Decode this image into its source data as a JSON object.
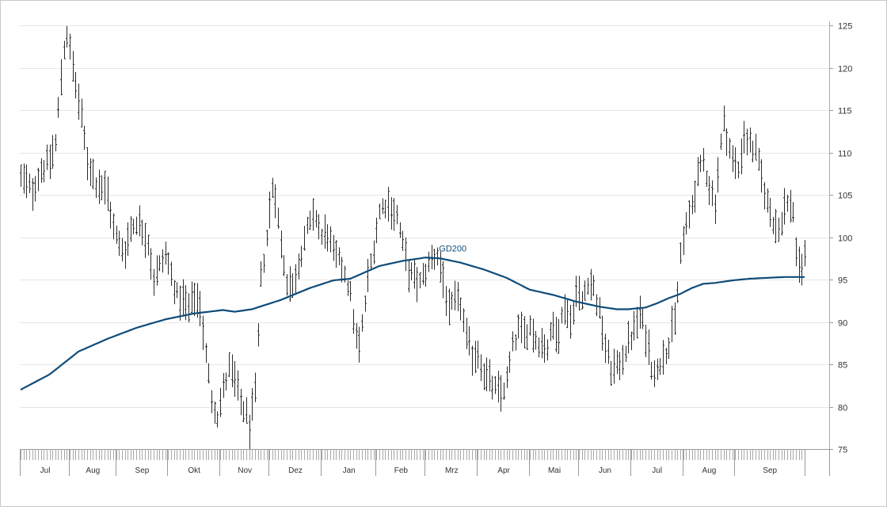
{
  "chart_data": {
    "type": "ohlc",
    "title": "",
    "xlabel": "",
    "ylabel": "",
    "ylim": [
      75,
      125
    ],
    "yticks": [
      75,
      80,
      85,
      90,
      95,
      100,
      105,
      110,
      115,
      120,
      125
    ],
    "grid": true,
    "y_axis_position": "right",
    "months": [
      "Jul",
      "Aug",
      "Sep",
      "Okt",
      "Nov",
      "Dez",
      "Jan",
      "Feb",
      "Mrz",
      "Apr",
      "Mai",
      "Jun",
      "Jul",
      "Aug",
      "Sep"
    ],
    "bar_color": "#2b2b2b",
    "ma_color": "#0f4c7a",
    "grid_color": "#e6e6e6",
    "price_anchors": [
      [
        0,
        107
      ],
      [
        4,
        105.5
      ],
      [
        7,
        108
      ],
      [
        10,
        109
      ],
      [
        12,
        111
      ],
      [
        14,
        119
      ],
      [
        15,
        122.5
      ],
      [
        16,
        124
      ],
      [
        17,
        122
      ],
      [
        19,
        118
      ],
      [
        21,
        114
      ],
      [
        23,
        109
      ],
      [
        26,
        106.5
      ],
      [
        28,
        106
      ],
      [
        30,
        105
      ],
      [
        32,
        101
      ],
      [
        34,
        99
      ],
      [
        36,
        98.5
      ],
      [
        38,
        101
      ],
      [
        40,
        102
      ],
      [
        42,
        101
      ],
      [
        44,
        99.5
      ],
      [
        46,
        95
      ],
      [
        48,
        96.5
      ],
      [
        50,
        98
      ],
      [
        52,
        95.5
      ],
      [
        54,
        93
      ],
      [
        56,
        92.5
      ],
      [
        58,
        91.5
      ],
      [
        60,
        93
      ],
      [
        62,
        92
      ],
      [
        64,
        86
      ],
      [
        66,
        81
      ],
      [
        68,
        79
      ],
      [
        70,
        82
      ],
      [
        72,
        84.5
      ],
      [
        74,
        83
      ],
      [
        76,
        80.5
      ],
      [
        78,
        79
      ],
      [
        79,
        77.5
      ],
      [
        80,
        79.5
      ],
      [
        81,
        81.5
      ],
      [
        82,
        88
      ],
      [
        83,
        95
      ],
      [
        85,
        100
      ],
      [
        86,
        103
      ],
      [
        87,
        106
      ],
      [
        88,
        105
      ],
      [
        90,
        99
      ],
      [
        92,
        95
      ],
      [
        94,
        94
      ],
      [
        96,
        97
      ],
      [
        98,
        100
      ],
      [
        100,
        101.5
      ],
      [
        102,
        102.5
      ],
      [
        104,
        100
      ],
      [
        106,
        100.5
      ],
      [
        108,
        98
      ],
      [
        110,
        97
      ],
      [
        112,
        96
      ],
      [
        114,
        93
      ],
      [
        116,
        88
      ],
      [
        117,
        87
      ],
      [
        118,
        89.5
      ],
      [
        120,
        95
      ],
      [
        122,
        99
      ],
      [
        124,
        103
      ],
      [
        126,
        104
      ],
      [
        128,
        103.5
      ],
      [
        130,
        102.5
      ],
      [
        132,
        99
      ],
      [
        134,
        96
      ],
      [
        136,
        95
      ],
      [
        138,
        94.5
      ],
      [
        140,
        96
      ],
      [
        142,
        97.5
      ],
      [
        144,
        98
      ],
      [
        146,
        95
      ],
      [
        148,
        91
      ],
      [
        150,
        92.5
      ],
      [
        152,
        92
      ],
      [
        154,
        88
      ],
      [
        156,
        86
      ],
      [
        158,
        86.5
      ],
      [
        160,
        84
      ],
      [
        162,
        83
      ],
      [
        164,
        82
      ],
      [
        166,
        81.5
      ],
      [
        168,
        83
      ],
      [
        170,
        87
      ],
      [
        172,
        89
      ],
      [
        174,
        88.5
      ],
      [
        176,
        89.5
      ],
      [
        178,
        88
      ],
      [
        180,
        87.5
      ],
      [
        182,
        87
      ],
      [
        184,
        89.5
      ],
      [
        186,
        89
      ],
      [
        188,
        92
      ],
      [
        190,
        90
      ],
      [
        192,
        93.5
      ],
      [
        194,
        92.5
      ],
      [
        196,
        95
      ],
      [
        198,
        94
      ],
      [
        200,
        91
      ],
      [
        202,
        87
      ],
      [
        204,
        84.5
      ],
      [
        206,
        84.5
      ],
      [
        208,
        86
      ],
      [
        210,
        87.5
      ],
      [
        212,
        89
      ],
      [
        214,
        91
      ],
      [
        216,
        88.5
      ],
      [
        218,
        85
      ],
      [
        220,
        84
      ],
      [
        222,
        86.5
      ],
      [
        224,
        87
      ],
      [
        225,
        89
      ],
      [
        226,
        90
      ],
      [
        227,
        93.5
      ],
      [
        228,
        98
      ],
      [
        230,
        101
      ],
      [
        232,
        104
      ],
      [
        234,
        107
      ],
      [
        236,
        109
      ],
      [
        238,
        106
      ],
      [
        240,
        104
      ],
      [
        242,
        111
      ],
      [
        243,
        113.5
      ],
      [
        244,
        112
      ],
      [
        246,
        109
      ],
      [
        248,
        108
      ],
      [
        250,
        112
      ],
      [
        252,
        111
      ],
      [
        254,
        110
      ],
      [
        256,
        107
      ],
      [
        258,
        104
      ],
      [
        260,
        102
      ],
      [
        262,
        101
      ],
      [
        264,
        103.5
      ],
      [
        266,
        104
      ],
      [
        267,
        103
      ],
      [
        268,
        98.5
      ],
      [
        269,
        96
      ],
      [
        270,
        96.5
      ],
      [
        271,
        97.5
      ]
    ],
    "ma_anchors": [
      [
        0,
        82
      ],
      [
        10,
        83.8
      ],
      [
        20,
        86.5
      ],
      [
        30,
        88
      ],
      [
        40,
        89.3
      ],
      [
        50,
        90.3
      ],
      [
        60,
        91
      ],
      [
        70,
        91.4
      ],
      [
        74,
        91.2
      ],
      [
        80,
        91.5
      ],
      [
        90,
        92.6
      ],
      [
        100,
        94
      ],
      [
        108,
        94.9
      ],
      [
        114,
        95.1
      ],
      [
        124,
        96.6
      ],
      [
        132,
        97.2
      ],
      [
        140,
        97.6
      ],
      [
        145,
        97.5
      ],
      [
        152,
        97
      ],
      [
        160,
        96.2
      ],
      [
        168,
        95.2
      ],
      [
        176,
        93.8
      ],
      [
        184,
        93.2
      ],
      [
        192,
        92.4
      ],
      [
        200,
        91.8
      ],
      [
        206,
        91.5
      ],
      [
        210,
        91.5
      ],
      [
        216,
        91.7
      ],
      [
        220,
        92.2
      ],
      [
        224,
        92.8
      ],
      [
        228,
        93.3
      ],
      [
        232,
        94
      ],
      [
        236,
        94.5
      ],
      [
        240,
        94.6
      ],
      [
        246,
        94.9
      ],
      [
        252,
        95.1
      ],
      [
        258,
        95.2
      ],
      [
        264,
        95.3
      ],
      [
        270,
        95.3
      ]
    ],
    "n_bars": 272,
    "series": [
      {
        "name": "GD200",
        "type": "line"
      }
    ]
  }
}
